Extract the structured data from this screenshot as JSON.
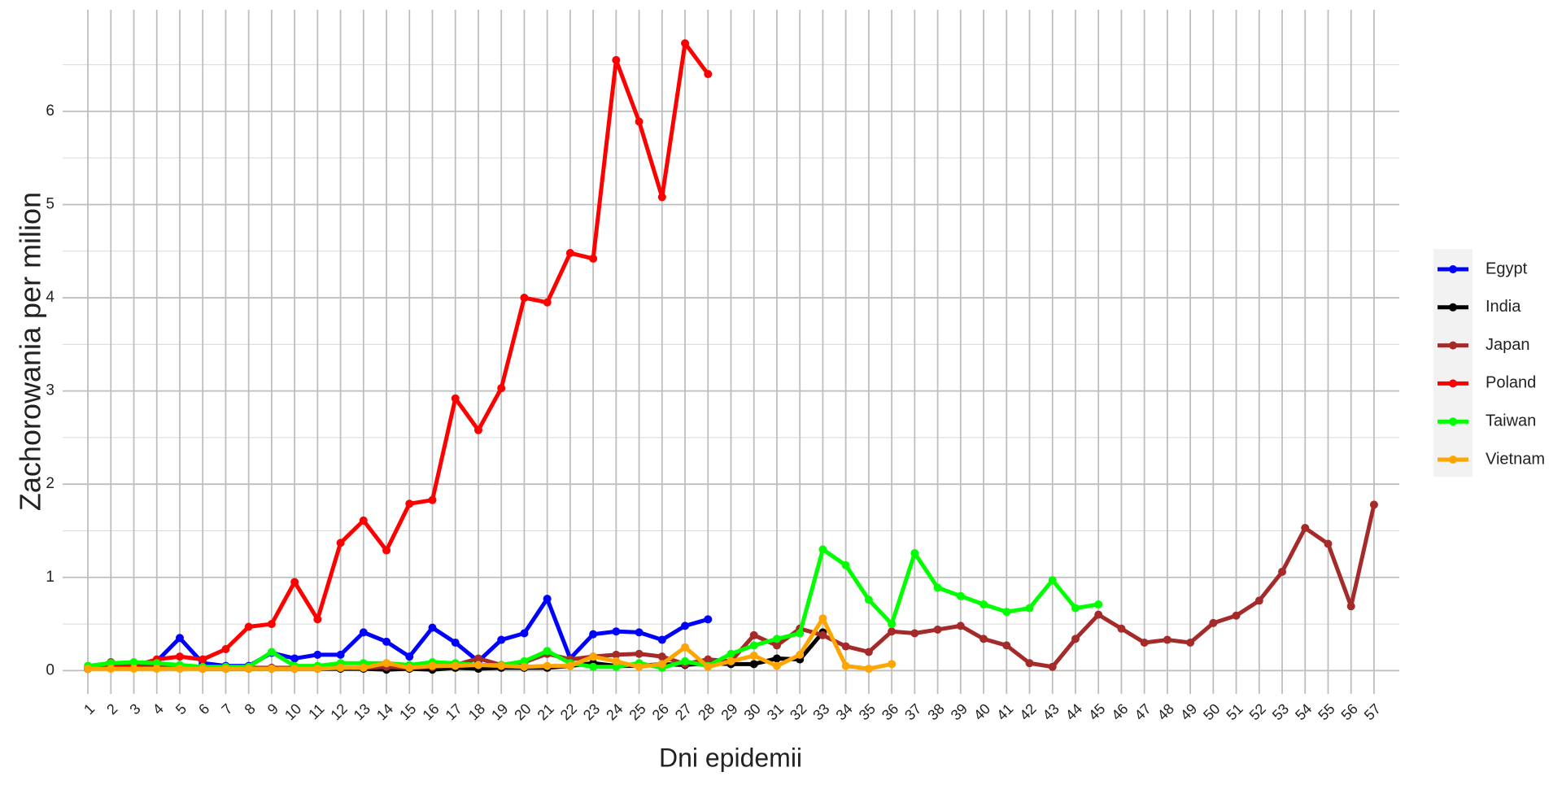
{
  "chart_data": {
    "type": "line",
    "x_label": "Dni epidemii",
    "y_label": "Zachorowania per milion",
    "categories": [
      "1",
      "2",
      "3",
      "4",
      "5",
      "6",
      "7",
      "8",
      "9",
      "10",
      "11",
      "12",
      "13",
      "14",
      "15",
      "16",
      "17",
      "18",
      "19",
      "20",
      "21",
      "22",
      "23",
      "24",
      "25",
      "26",
      "27",
      "28",
      "29",
      "30",
      "31",
      "32",
      "33",
      "34",
      "35",
      "36",
      "37",
      "38",
      "39",
      "40",
      "41",
      "42",
      "43",
      "44",
      "45",
      "46",
      "47",
      "48",
      "49",
      "50",
      "51",
      "52",
      "53",
      "54",
      "55",
      "56",
      "57"
    ],
    "ylim": [
      -0.25,
      7.09
    ],
    "yticks": [
      0,
      1,
      2,
      3,
      4,
      5,
      6
    ],
    "grid": true,
    "legend": "right",
    "series": [
      {
        "name": "Egypt",
        "color": "#0000ff",
        "values": [
          0.02,
          0.05,
          0.05,
          0.1,
          0.35,
          0.08,
          0.05,
          0.05,
          0.19,
          0.13,
          0.17,
          0.17,
          0.41,
          0.31,
          0.15,
          0.46,
          0.3,
          0.1,
          0.33,
          0.4,
          0.77,
          0.13,
          0.39,
          0.42,
          0.41,
          0.33,
          0.48,
          0.55,
          null,
          null,
          null,
          null,
          null,
          null,
          null,
          null,
          null,
          null,
          null,
          null,
          null,
          null,
          null,
          null,
          null,
          null,
          null,
          null,
          null,
          null,
          null,
          null,
          null,
          null,
          null,
          null,
          null
        ]
      },
      {
        "name": "India",
        "color": "#000000",
        "values": [
          0.02,
          0.03,
          0.03,
          0.03,
          0.03,
          0.02,
          0.02,
          0.02,
          0.02,
          0.02,
          0.02,
          0.02,
          0.02,
          0.01,
          0.02,
          0.01,
          0.03,
          0.02,
          0.03,
          0.03,
          0.03,
          0.05,
          0.08,
          0.05,
          0.05,
          0.07,
          0.06,
          0.08,
          0.07,
          0.07,
          0.13,
          0.12,
          0.41,
          null,
          null,
          null,
          null,
          null,
          null,
          null,
          null,
          null,
          null,
          null,
          null,
          null,
          null,
          null,
          null,
          null,
          null,
          null,
          null,
          null,
          null,
          null,
          null
        ]
      },
      {
        "name": "Japan",
        "color": "#a52a2a",
        "values": [
          0.02,
          0.09,
          0.05,
          0.05,
          0.03,
          0.03,
          0.03,
          0.03,
          0.03,
          0.03,
          0.03,
          0.03,
          0.03,
          0.04,
          0.03,
          0.04,
          0.06,
          0.13,
          0.06,
          0.09,
          0.18,
          0.12,
          0.15,
          0.17,
          0.18,
          0.15,
          0.07,
          0.12,
          0.1,
          0.38,
          0.27,
          0.45,
          0.38,
          0.26,
          0.2,
          0.42,
          0.4,
          0.44,
          0.48,
          0.34,
          0.27,
          0.08,
          0.04,
          0.34,
          0.6,
          0.45,
          0.3,
          0.33,
          0.3,
          0.51,
          0.59,
          0.75,
          1.06,
          1.53,
          1.36,
          0.69,
          1.78
        ]
      },
      {
        "name": "Poland",
        "color": "#ff0000",
        "values": [
          0.02,
          0.05,
          0.05,
          0.12,
          0.15,
          0.12,
          0.23,
          0.47,
          0.5,
          0.95,
          0.55,
          1.37,
          1.61,
          1.29,
          1.79,
          1.83,
          2.92,
          2.58,
          3.03,
          4.0,
          3.95,
          4.48,
          4.42,
          6.55,
          5.89,
          5.08,
          6.73,
          6.4,
          null,
          null,
          null,
          null,
          null,
          null,
          null,
          null,
          null,
          null,
          null,
          null,
          null,
          null,
          null,
          null,
          null,
          null,
          null,
          null,
          null,
          null,
          null,
          null,
          null,
          null,
          null,
          null,
          null
        ]
      },
      {
        "name": "Taiwan",
        "color": "#00ff00",
        "values": [
          0.05,
          0.08,
          0.09,
          0.08,
          0.06,
          0.04,
          0.04,
          0.04,
          0.2,
          0.05,
          0.05,
          0.08,
          0.08,
          0.08,
          0.06,
          0.09,
          0.08,
          0.06,
          0.06,
          0.1,
          0.21,
          0.08,
          0.04,
          0.04,
          0.08,
          0.03,
          0.1,
          0.05,
          0.18,
          0.27,
          0.34,
          0.4,
          1.3,
          1.13,
          0.76,
          0.5,
          1.26,
          0.89,
          0.8,
          0.71,
          0.63,
          0.67,
          0.97,
          0.67,
          0.71,
          null,
          null,
          null,
          null,
          null,
          null,
          null,
          null,
          null,
          null,
          null,
          null
        ]
      },
      {
        "name": "Vietnam",
        "color": "#ffa500",
        "values": [
          0.02,
          0.02,
          0.02,
          0.02,
          0.02,
          0.02,
          0.02,
          0.02,
          0.02,
          0.02,
          0.02,
          0.03,
          0.03,
          0.08,
          0.03,
          0.05,
          0.05,
          0.06,
          0.05,
          0.04,
          0.05,
          0.05,
          0.15,
          0.1,
          0.04,
          0.07,
          0.25,
          0.04,
          0.1,
          0.16,
          0.05,
          0.17,
          0.56,
          0.05,
          0.02,
          0.07,
          null,
          null,
          null,
          null,
          null,
          null,
          null,
          null,
          null,
          null,
          null,
          null,
          null,
          null,
          null,
          null,
          null,
          null,
          null,
          null,
          null
        ]
      }
    ]
  }
}
